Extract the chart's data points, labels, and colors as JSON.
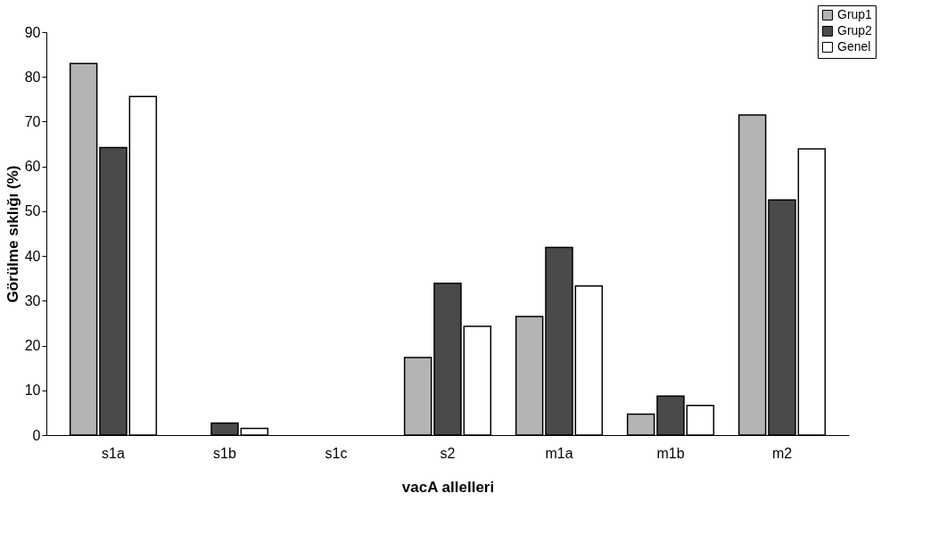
{
  "chart_data": {
    "type": "bar",
    "xlabel": "vacA allelleri",
    "ylabel": "Görülme sıklığı (%)",
    "categories": [
      "s1a",
      "s1b",
      "s1c",
      "s2",
      "m1a",
      "m1b",
      "m2"
    ],
    "series": [
      {
        "name": "Grup1",
        "color": "#b4b4b4",
        "values": [
          83,
          0,
          0,
          17.3,
          26.5,
          4.7,
          71.5
        ]
      },
      {
        "name": "Grup2",
        "color": "#4a4a4a",
        "values": [
          64.2,
          2.7,
          0,
          33.9,
          41.9,
          8.7,
          52.5
        ]
      },
      {
        "name": "Genel",
        "color": "#ffffff",
        "values": [
          75.6,
          1.5,
          0,
          24.3,
          33.3,
          6.6,
          63.9
        ]
      }
    ],
    "ylim": [
      0,
      90
    ],
    "yticks": [
      0,
      10,
      20,
      30,
      40,
      50,
      60,
      70,
      80,
      90
    ],
    "grid": false,
    "legend": "top right"
  }
}
